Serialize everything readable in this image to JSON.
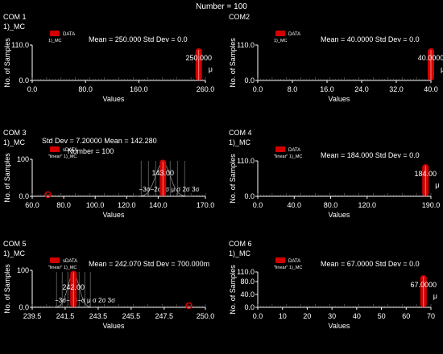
{
  "header": {
    "number_label": "Number = 100"
  },
  "colors": {
    "background": "#000000",
    "data": "#d40000",
    "text": "#ffffff",
    "grid": "#7a7a7a"
  },
  "panels": [
    {
      "id": "com1",
      "title": "COM 1",
      "name": "1)_MC",
      "legend": [
        {
          "label": "DATA",
          "swatch": "red"
        }
      ],
      "legend_sub": "1)_MC",
      "stats_line": "Mean = 250.000  Std Dev = 0.0",
      "marker_value": "250.000",
      "mu": "μ",
      "ylabel": "No. of Samples",
      "xlabel": "Values",
      "yticks": [
        "110.0",
        "0.0"
      ],
      "xticks": [
        "0.0",
        "80.0",
        "160.0",
        "260.0"
      ],
      "chart_data": {
        "type": "bar",
        "xlim": [
          0,
          260
        ],
        "ylim": [
          0,
          110
        ],
        "values": [
          {
            "x": 250,
            "y": 100
          }
        ]
      }
    },
    {
      "id": "com2",
      "title": "COM2",
      "name": "",
      "legend": [
        {
          "label": "DATA",
          "swatch": "red"
        }
      ],
      "legend_sub": "1)_MC",
      "stats_line": "Mean = 40.0000  Std Dev = 0.0",
      "marker_value": "40.0000",
      "mu": "μ",
      "ylabel": "No. of Samples",
      "xlabel": "Values",
      "yticks": [
        "110.0",
        "0.0"
      ],
      "xticks": [
        "0.0",
        "8.0",
        "16.0",
        "24.0",
        "32.0",
        "40.0"
      ],
      "chart_data": {
        "type": "bar",
        "xlim": [
          0,
          40
        ],
        "ylim": [
          0,
          110
        ],
        "values": [
          {
            "x": 40,
            "y": 100
          }
        ]
      }
    },
    {
      "id": "com3",
      "title": "COM 3",
      "name": "1)_MC",
      "legend": [
        {
          "label": "sDATA",
          "swatch": "red"
        }
      ],
      "legend_sub": "\"linear\" 1)_MC",
      "stats_line": "Std Dev = 7.20000     Mean = 142.280",
      "number_line": "Number = 100",
      "marker_value": "143.00",
      "mu": "μ",
      "sigma_labels": "−3σ−2σ−σ  μ  σ  2σ 3σ",
      "ylabel": "No. of Samples",
      "xlabel": "Values",
      "yticks": [
        "100",
        "0.0"
      ],
      "xticks": [
        "60.0",
        "80.0",
        "100.0",
        "120.0",
        "140.0",
        "170.0"
      ],
      "chart_data": {
        "type": "bar",
        "xlim": [
          60,
          170
        ],
        "ylim": [
          0,
          100
        ],
        "values": [
          {
            "x": 143,
            "y": 99
          },
          {
            "x": 70,
            "y": 1
          }
        ]
      }
    },
    {
      "id": "com4",
      "title": "COM 4",
      "name": "1)_MC",
      "legend": [
        {
          "label": "DATA",
          "swatch": "red"
        }
      ],
      "legend_sub": "\"linear\" 1)_MC",
      "stats_line": "Mean = 184.000  Std Dev = 0.0",
      "marker_value": "184.00",
      "mu": "μ",
      "ylabel": "No. of Samples",
      "xlabel": "Values",
      "yticks": [
        "110.0",
        "0.0"
      ],
      "xticks": [
        "0.0",
        "40.0",
        "80.0",
        "120.0",
        "190.0"
      ],
      "chart_data": {
        "type": "bar",
        "xlim": [
          0,
          190
        ],
        "ylim": [
          0,
          110
        ],
        "values": [
          {
            "x": 184,
            "y": 100
          }
        ]
      }
    },
    {
      "id": "com5",
      "title": "COM 5",
      "name": "1)_MC",
      "legend": [
        {
          "label": "sDATA",
          "swatch": "red"
        }
      ],
      "legend_sub": "\"linear\" 1)_MC",
      "stats_line": "Mean = 242.070  Std Dev = 700.000m",
      "marker_value": "242.00",
      "mu": "μ",
      "sigma_labels": "−3σ−2σ−σ  μ  σ  2σ 3σ",
      "ylabel": "No. of Samples",
      "xlabel": "Values",
      "yticks": [
        "100",
        "0.0"
      ],
      "xticks": [
        "239.5",
        "241.5",
        "243.5",
        "245.5",
        "247.5",
        "250.0"
      ],
      "chart_data": {
        "type": "bar",
        "xlim": [
          239.5,
          250
        ],
        "ylim": [
          0,
          100
        ],
        "values": [
          {
            "x": 242,
            "y": 99
          },
          {
            "x": 249,
            "y": 1
          }
        ]
      }
    },
    {
      "id": "com6",
      "title": "COM 6",
      "name": "1)_MC",
      "legend": [
        {
          "label": "DATA",
          "swatch": "red"
        }
      ],
      "legend_sub": "\"linear\" 1)_MC",
      "stats_line": "Mean = 67.0000  Std Dev = 0.0",
      "marker_value": "67.0000",
      "mu": "μ",
      "ylabel": "No. of Samples",
      "xlabel": "Values",
      "yticks": [
        "110.0",
        "80.0",
        "40.0",
        "0.0"
      ],
      "xticks": [
        "0.0",
        "10",
        "20",
        "30",
        "40",
        "50",
        "60",
        "70"
      ],
      "chart_data": {
        "type": "bar",
        "xlim": [
          0,
          70
        ],
        "ylim": [
          0,
          110
        ],
        "values": [
          {
            "x": 67,
            "y": 100
          }
        ]
      }
    }
  ]
}
